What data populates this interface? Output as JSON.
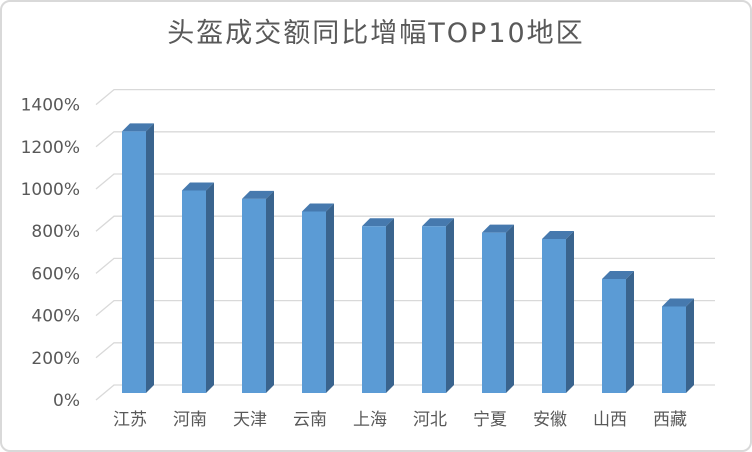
{
  "chart_data": {
    "type": "bar",
    "variant": "3d-column",
    "title": "头盔成交额同比增幅TOP10地区",
    "categories": [
      "江苏",
      "河南",
      "天津",
      "云南",
      "上海",
      "河北",
      "宁夏",
      "安徽",
      "山西",
      "西藏"
    ],
    "values": [
      1240,
      960,
      920,
      860,
      790,
      790,
      760,
      730,
      540,
      410
    ],
    "unit": "%",
    "xlabel": "",
    "ylabel": "",
    "ylim": [
      0,
      1400
    ],
    "ytick_step": 200,
    "ytick_labels": [
      "0%",
      "200%",
      "400%",
      "600%",
      "800%",
      "1000%",
      "1200%",
      "1400%"
    ],
    "legend": "none",
    "grid": "horizontal-back-wall",
    "colors": {
      "bar_front": "#5B9BD5",
      "bar_side": "#3A648E",
      "bar_top": "#4679AE",
      "gridline": "#D9D9D9",
      "text": "#595959",
      "frame_border": "#D9D9D9",
      "background": "#FFFFFF"
    }
  }
}
